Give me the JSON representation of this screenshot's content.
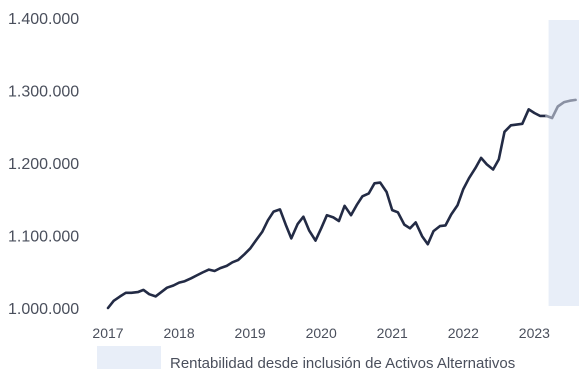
{
  "chart_data": {
    "type": "line",
    "y_ticks": [
      "1.000.000",
      "1.100.000",
      "1.200.000",
      "1.300.000",
      "1.400.000"
    ],
    "y_tick_values": [
      1000000,
      1100000,
      1200000,
      1300000,
      1400000
    ],
    "ylim": [
      1000000,
      1400000
    ],
    "x_ticks": [
      "2017",
      "2018",
      "2019",
      "2020",
      "2021",
      "2022",
      "2023"
    ],
    "x_tick_values": [
      2017,
      2018,
      2019,
      2020,
      2021,
      2022,
      2023
    ],
    "xlim": [
      2017,
      2023.6
    ],
    "grid": false,
    "legend": {
      "label": "Rentabilidad desde inclusión de Activos Alternativos",
      "color": "#e8eef8",
      "placement": "bottom"
    },
    "shaded_region": {
      "x_start": 2023.2,
      "x_end": 2023.6,
      "color": "#e8eef8"
    },
    "colors": {
      "main": "#232b45",
      "highlighted": "#8a91a3"
    },
    "series": [
      {
        "x": [
          2017.0,
          2017.08,
          2017.17,
          2017.25,
          2017.33,
          2017.42,
          2017.5,
          2017.58,
          2017.67,
          2017.75,
          2017.83,
          2017.92,
          2018.0,
          2018.08,
          2018.17,
          2018.25,
          2018.33,
          2018.42,
          2018.5,
          2018.58,
          2018.67,
          2018.75,
          2018.83,
          2018.92,
          2019.0,
          2019.08,
          2019.17,
          2019.25,
          2019.33,
          2019.42,
          2019.5,
          2019.58,
          2019.67,
          2019.75,
          2019.83,
          2019.92,
          2020.0,
          2020.08,
          2020.17,
          2020.25,
          2020.33,
          2020.42,
          2020.5,
          2020.58,
          2020.67,
          2020.75,
          2020.83,
          2020.92,
          2021.0,
          2021.08,
          2021.17,
          2021.25,
          2021.33,
          2021.42,
          2021.5,
          2021.58,
          2021.67,
          2021.75,
          2021.83,
          2021.92,
          2022.0,
          2022.08,
          2022.17,
          2022.25,
          2022.33,
          2022.42,
          2022.5,
          2022.58,
          2022.67,
          2022.75,
          2022.83,
          2022.92,
          2023.0,
          2023.08,
          2023.17
        ],
        "y": [
          1000000,
          1010000,
          1016000,
          1021000,
          1021000,
          1022000,
          1025000,
          1019000,
          1016000,
          1022000,
          1028000,
          1031000,
          1035000,
          1037000,
          1041000,
          1045000,
          1049000,
          1053000,
          1051000,
          1055000,
          1058000,
          1063000,
          1066000,
          1074000,
          1082000,
          1093000,
          1105000,
          1121000,
          1133000,
          1136000,
          1115000,
          1096000,
          1116000,
          1126000,
          1107000,
          1093000,
          1110000,
          1128000,
          1125000,
          1120000,
          1141000,
          1128000,
          1142000,
          1154000,
          1158000,
          1172000,
          1173000,
          1160000,
          1135000,
          1132000,
          1115000,
          1110000,
          1118000,
          1099000,
          1088000,
          1106000,
          1113000,
          1114000,
          1129000,
          1142000,
          1164000,
          1179000,
          1193000,
          1207000,
          1198000,
          1191000,
          1205000,
          1243000,
          1252000,
          1253000,
          1254000,
          1274000,
          1269000,
          1265000,
          1265000
        ]
      },
      {
        "x": [
          2023.17,
          2023.25,
          2023.33,
          2023.42,
          2023.5,
          2023.58
        ],
        "y": [
          1265000,
          1262000,
          1278000,
          1284000,
          1286000,
          1287000
        ]
      }
    ]
  }
}
